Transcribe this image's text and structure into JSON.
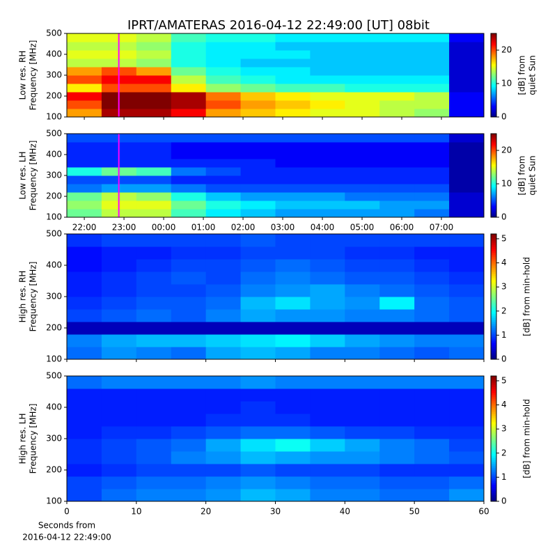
{
  "title": "IPRT/AMATERAS 2016-04-12 22:49:00 [UT]   08bit",
  "chart_data": [
    {
      "type": "spectrogram",
      "ylabel": [
        "Low res. RH",
        "Frequency [MHz]"
      ],
      "colorbar_label": [
        "[dB] from",
        "quiet Sun"
      ],
      "xlim": [
        21.56,
        32.07
      ],
      "xticks": [
        {
          "value": 22,
          "label": "22:00"
        },
        {
          "value": 23,
          "label": "23:00"
        },
        {
          "value": 24,
          "label": "00:00"
        },
        {
          "value": 25,
          "label": "01:00"
        },
        {
          "value": 26,
          "label": "02:00"
        },
        {
          "value": 27,
          "label": "03:00"
        },
        {
          "value": 28,
          "label": "04:00"
        },
        {
          "value": 29,
          "label": "05:00"
        },
        {
          "value": 30,
          "label": "06:00"
        },
        {
          "value": 31,
          "label": "07:00"
        }
      ],
      "show_xtick_labels": false,
      "ylim": [
        100,
        500
      ],
      "yticks": [
        100,
        200,
        300,
        400,
        500
      ],
      "clim": [
        0,
        25
      ],
      "cticks": [
        0,
        10,
        20
      ],
      "marker_x": 22.87,
      "marker_color": "#ff00ff",
      "z": [
        [
          18,
          24,
          24,
          22,
          18,
          17,
          16,
          15,
          15,
          14,
          13,
          3
        ],
        [
          20,
          25,
          25,
          24,
          20,
          18,
          17,
          16,
          15,
          14,
          14,
          3
        ],
        [
          22,
          25,
          25,
          24,
          19,
          17,
          16,
          15,
          15,
          15,
          14,
          3
        ],
        [
          16,
          20,
          20,
          16,
          13,
          12,
          11,
          11,
          10,
          10,
          10,
          2
        ],
        [
          20,
          22,
          22,
          14,
          11,
          10,
          9,
          9,
          9,
          9,
          9,
          2
        ],
        [
          18,
          20,
          18,
          12,
          10,
          9,
          9,
          8,
          8,
          8,
          8,
          2
        ],
        [
          14,
          14,
          13,
          10,
          9,
          8,
          8,
          8,
          8,
          8,
          8,
          2
        ],
        [
          15,
          15,
          14,
          10,
          9,
          9,
          9,
          8,
          8,
          8,
          8,
          2
        ],
        [
          14,
          14,
          13,
          10,
          9,
          9,
          8,
          8,
          8,
          8,
          8,
          2
        ],
        [
          15,
          15,
          14,
          11,
          10,
          10,
          9,
          9,
          9,
          9,
          9,
          3
        ]
      ]
    },
    {
      "type": "spectrogram",
      "ylabel": [
        "Low res. LH",
        "Frequency [MHz]"
      ],
      "colorbar_label": [
        "[dB] from",
        "quiet Sun"
      ],
      "xlim": [
        21.56,
        32.07
      ],
      "xticks": [
        {
          "value": 22,
          "label": "22:00"
        },
        {
          "value": 23,
          "label": "23:00"
        },
        {
          "value": 24,
          "label": "00:00"
        },
        {
          "value": 25,
          "label": "01:00"
        },
        {
          "value": 26,
          "label": "02:00"
        },
        {
          "value": 27,
          "label": "03:00"
        },
        {
          "value": 28,
          "label": "04:00"
        },
        {
          "value": 29,
          "label": "05:00"
        },
        {
          "value": 30,
          "label": "06:00"
        },
        {
          "value": 31,
          "label": "07:00"
        }
      ],
      "show_xtick_labels": true,
      "ylim": [
        100,
        500
      ],
      "yticks": [
        100,
        200,
        300,
        400,
        500
      ],
      "clim": [
        0,
        25
      ],
      "cticks": [
        0,
        10,
        20
      ],
      "marker_x": 22.87,
      "marker_color": "#ff00ff",
      "z": [
        [
          12,
          14,
          14,
          11,
          9,
          8,
          7,
          7,
          7,
          7,
          6,
          2
        ],
        [
          13,
          15,
          15,
          12,
          10,
          9,
          8,
          8,
          8,
          7,
          7,
          2
        ],
        [
          12,
          14,
          13,
          10,
          8,
          7,
          7,
          7,
          6,
          6,
          6,
          2
        ],
        [
          6,
          7,
          7,
          6,
          5,
          5,
          5,
          5,
          5,
          5,
          5,
          1
        ],
        [
          5,
          5,
          5,
          4,
          4,
          4,
          4,
          4,
          4,
          4,
          4,
          1
        ],
        [
          10,
          12,
          11,
          6,
          5,
          4,
          4,
          4,
          4,
          4,
          4,
          1
        ],
        [
          4,
          4,
          4,
          4,
          4,
          4,
          3,
          3,
          3,
          3,
          3,
          1
        ],
        [
          4,
          4,
          4,
          3,
          3,
          3,
          3,
          3,
          3,
          3,
          3,
          1
        ],
        [
          4,
          4,
          4,
          3,
          3,
          3,
          3,
          3,
          3,
          3,
          3,
          1
        ],
        [
          5,
          5,
          5,
          5,
          5,
          5,
          5,
          5,
          5,
          5,
          5,
          2
        ]
      ]
    },
    {
      "type": "spectrogram",
      "ylabel": [
        "High res. RH",
        "Frequency [MHz]"
      ],
      "colorbar_label": [
        "[dB] from min-hold"
      ],
      "xlim": [
        0,
        60
      ],
      "xticks": [
        0,
        10,
        20,
        30,
        40,
        50,
        60
      ],
      "show_xtick_labels": false,
      "ylim": [
        100,
        500
      ],
      "yticks": [
        100,
        200,
        300,
        400,
        500
      ],
      "clim": [
        0,
        5.2
      ],
      "cticks": [
        0,
        1,
        2,
        3,
        4,
        5
      ],
      "z": [
        [
          1.2,
          1.4,
          1.3,
          1.2,
          1.5,
          1.6,
          1.5,
          1.3,
          1.3,
          1.2,
          1.1,
          1.2
        ],
        [
          1.3,
          1.5,
          1.6,
          1.6,
          1.7,
          1.8,
          1.9,
          1.7,
          1.5,
          1.4,
          1.3,
          1.3
        ],
        [
          0.3,
          0.3,
          0.3,
          0.3,
          0.3,
          0.3,
          0.3,
          0.3,
          0.3,
          0.3,
          0.3,
          0.3
        ],
        [
          1.0,
          1.1,
          1.2,
          1.1,
          1.3,
          1.5,
          1.4,
          1.4,
          1.3,
          1.3,
          1.2,
          1.1
        ],
        [
          0.9,
          1.0,
          1.1,
          1.1,
          1.2,
          1.6,
          1.8,
          1.5,
          1.4,
          1.9,
          1.2,
          1.1
        ],
        [
          0.8,
          0.9,
          1.0,
          1.0,
          1.1,
          1.3,
          1.4,
          1.5,
          1.3,
          1.2,
          1.1,
          1.0
        ],
        [
          0.8,
          0.9,
          1.0,
          1.1,
          1.0,
          1.2,
          1.3,
          1.2,
          1.1,
          1.1,
          1.0,
          0.9
        ],
        [
          0.7,
          0.8,
          0.9,
          1.0,
          1.0,
          1.1,
          1.2,
          1.1,
          1.0,
          1.0,
          0.9,
          0.8
        ],
        [
          0.7,
          0.8,
          0.8,
          0.9,
          0.9,
          1.0,
          1.0,
          1.0,
          0.9,
          0.9,
          0.8,
          0.8
        ],
        [
          0.9,
          1.0,
          1.0,
          1.0,
          1.0,
          1.1,
          1.0,
          1.0,
          1.0,
          1.0,
          1.0,
          1.0
        ]
      ]
    },
    {
      "type": "spectrogram",
      "ylabel": [
        "High res. LH",
        "Frequency [MHz]"
      ],
      "colorbar_label": [
        "[dB] from min-hold"
      ],
      "xlabel": [
        "Seconds from",
        "2016-04-12 22:49:00"
      ],
      "xlim": [
        0,
        60
      ],
      "xticks": [
        0,
        10,
        20,
        30,
        40,
        50,
        60
      ],
      "show_xtick_labels": true,
      "ylim": [
        100,
        500
      ],
      "yticks": [
        100,
        200,
        300,
        400,
        500
      ],
      "clim": [
        0,
        5.2
      ],
      "cticks": [
        0,
        1,
        2,
        3,
        4,
        5
      ],
      "z": [
        [
          1.0,
          1.2,
          1.3,
          1.3,
          1.4,
          1.6,
          1.5,
          1.3,
          1.3,
          1.2,
          1.2,
          1.4
        ],
        [
          1.0,
          1.1,
          1.2,
          1.2,
          1.3,
          1.4,
          1.3,
          1.2,
          1.2,
          1.1,
          1.1,
          1.2
        ],
        [
          0.8,
          0.9,
          1.0,
          1.0,
          1.0,
          1.1,
          1.0,
          1.0,
          1.0,
          0.9,
          0.9,
          0.9
        ],
        [
          0.9,
          1.0,
          1.1,
          1.3,
          1.4,
          1.6,
          1.5,
          1.4,
          1.4,
          1.3,
          1.2,
          1.1
        ],
        [
          0.9,
          1.0,
          1.1,
          1.2,
          1.5,
          1.8,
          2.0,
          1.7,
          1.5,
          1.3,
          1.2,
          1.0
        ],
        [
          0.8,
          0.9,
          0.9,
          1.0,
          1.1,
          1.2,
          1.2,
          1.1,
          1.0,
          1.0,
          0.9,
          0.9
        ],
        [
          0.8,
          0.8,
          0.8,
          0.8,
          0.9,
          0.9,
          0.9,
          0.8,
          0.8,
          0.8,
          0.8,
          0.8
        ],
        [
          0.8,
          0.8,
          0.8,
          0.8,
          0.8,
          0.9,
          0.8,
          0.8,
          0.8,
          0.8,
          0.8,
          0.8
        ],
        [
          0.8,
          0.8,
          0.8,
          0.8,
          0.8,
          0.8,
          0.8,
          0.8,
          0.8,
          0.8,
          0.8,
          0.8
        ],
        [
          1.2,
          1.3,
          1.3,
          1.3,
          1.3,
          1.4,
          1.3,
          1.3,
          1.3,
          1.3,
          1.3,
          1.3
        ]
      ]
    }
  ]
}
